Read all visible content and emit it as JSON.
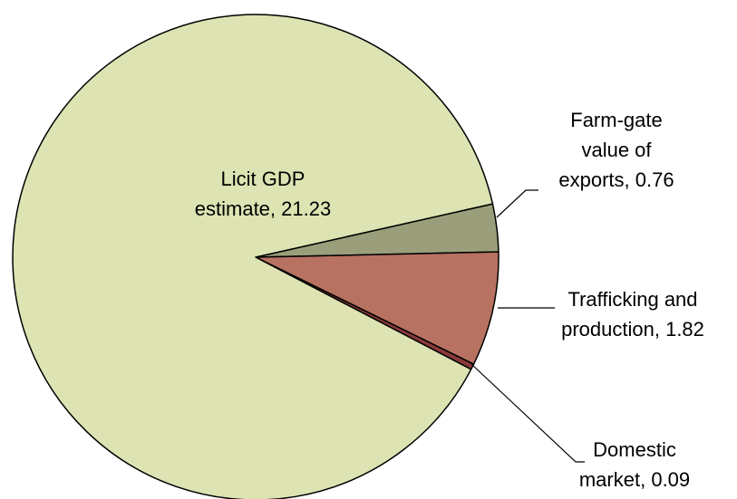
{
  "chart_data": {
    "type": "pie",
    "categories": [
      "Farm-gate value of exports",
      "Trafficking and production",
      "Domestic market",
      "Licit GDP estimate"
    ],
    "values": [
      0.76,
      1.82,
      0.09,
      21.23
    ],
    "colors": [
      "#9a9e7a",
      "#b87262",
      "#8b3a3a",
      "#dde3b2"
    ]
  }
}
